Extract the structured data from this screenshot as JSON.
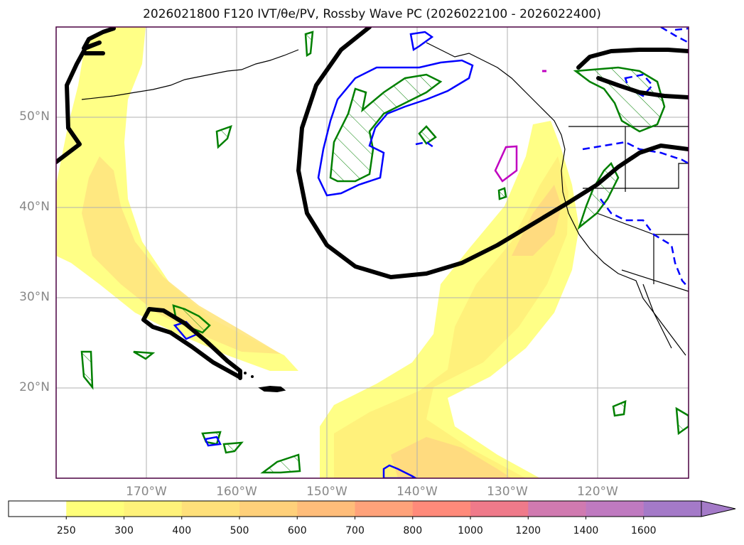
{
  "title": "2026021800 F120 IVT/θe/PV, Rossby Wave PC (2026022100 - 2026022400)",
  "lat_labels": [
    "50°N",
    "40°N",
    "30°N",
    "20°N"
  ],
  "lon_labels": [
    "170°W",
    "160°W",
    "150°W",
    "140°W",
    "130°W",
    "120°W"
  ],
  "colorbar": {
    "levels": [
      "250",
      "300",
      "400",
      "500",
      "600",
      "700",
      "800",
      "1000",
      "1200",
      "1400",
      "1600"
    ],
    "colors": [
      "#ffffff",
      "#ffff7a",
      "#fff27a",
      "#ffe07a",
      "#ffd07a",
      "#ffbd7a",
      "#ffa27a",
      "#ff8a7a",
      "#ef7a8a",
      "#d07ab0",
      "#bf7ac0",
      "#a47ac8"
    ],
    "extend": "max"
  },
  "colors": {
    "ivt_low": "#ffff80",
    "ivt_mid": "#fff07a",
    "ivt_high": "#ffdc80",
    "rossby_contour": "#000000",
    "green_contour": "#008000",
    "blue_contour": "#0000ff",
    "magenta_contour": "#c000c0",
    "grid": "#b0b0b0"
  }
}
